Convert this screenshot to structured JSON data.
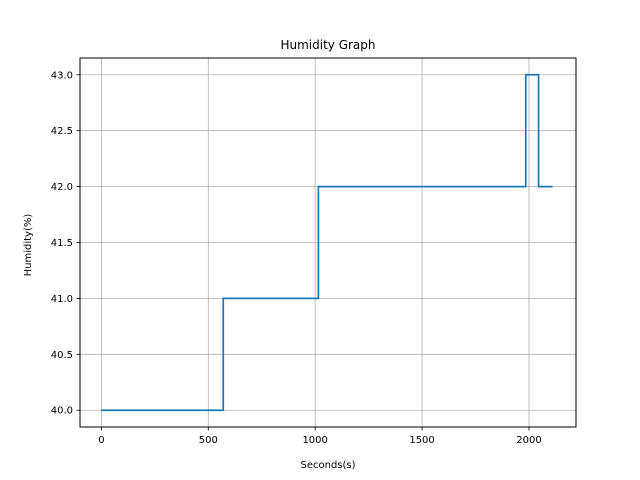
{
  "chart_data": {
    "type": "line",
    "title": "Humidity Graph",
    "xlabel": "Seconds(s)",
    "ylabel": "Humidity(%)",
    "xlim": [
      -100,
      2220
    ],
    "ylim": [
      39.85,
      43.15
    ],
    "xticks": [
      0,
      500,
      1000,
      1500,
      2000
    ],
    "yticks": [
      40.0,
      40.5,
      41.0,
      41.5,
      42.0,
      42.5,
      43.0
    ],
    "xtick_labels": [
      "0",
      "500",
      "1000",
      "1500",
      "2000"
    ],
    "ytick_labels": [
      "40.0",
      "40.5",
      "41.0",
      "41.5",
      "42.0",
      "42.5",
      "43.0"
    ],
    "grid": true,
    "series": [
      {
        "color": "#1f77b4",
        "x": [
          0,
          570,
          570,
          1015,
          1015,
          1985,
          1985,
          2045,
          2045,
          2110
        ],
        "y": [
          40.0,
          40.0,
          41.0,
          41.0,
          42.0,
          42.0,
          43.0,
          43.0,
          42.0,
          42.0
        ]
      }
    ]
  }
}
